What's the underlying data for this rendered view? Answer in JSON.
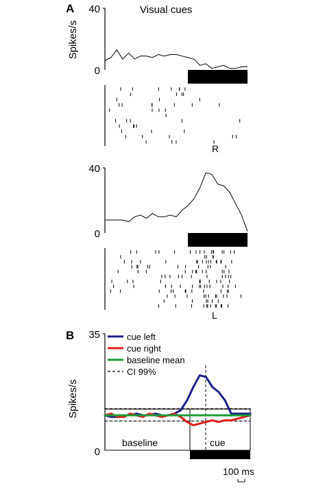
{
  "panel_a": {
    "letter": "A",
    "title": "Visual cues",
    "ylabel": "Spikes/s",
    "top": {
      "ytick_max": "40",
      "ytick_min": "0",
      "raster_label": "R",
      "rate": [
        6,
        8,
        13,
        7,
        11,
        7,
        9,
        9,
        8,
        10,
        9,
        10,
        10,
        9,
        8,
        7,
        3,
        4,
        1,
        2,
        3,
        1,
        1,
        2,
        2
      ],
      "raster_rows": 11,
      "seed": 7
    },
    "bottom": {
      "ytick_max": "40",
      "ytick_min": "0",
      "raster_label": "L",
      "rate": [
        8,
        8,
        8,
        8,
        7,
        10,
        11,
        9,
        12,
        10,
        10,
        11,
        10,
        14,
        17,
        21,
        28,
        37,
        36,
        30,
        29,
        25,
        18,
        11,
        1
      ],
      "raster_rows": 12,
      "seed": 13
    }
  },
  "panel_b": {
    "letter": "B",
    "ylabel": "Spikes/s",
    "ytick_max": "35",
    "ytick_min": "0",
    "label_baseline": "baseline",
    "label_cue": "cue",
    "scale_bar": "100 ms",
    "legend": [
      {
        "label": "cue left",
        "color": "#1c1f8a"
      },
      {
        "label": "cue right",
        "color": "#e31b1b"
      },
      {
        "label": "baseline mean",
        "color": "#1f9a3a"
      },
      {
        "label": "CI 99%",
        "color": "#000000"
      }
    ]
  },
  "chart_data": [
    {
      "type": "line",
      "series": [
        {
          "values": [
            6,
            8,
            13,
            7,
            11,
            7,
            9,
            9,
            8,
            10,
            9,
            10,
            10,
            9,
            8,
            7,
            3,
            4,
            1,
            2,
            3,
            1,
            1,
            2,
            2
          ]
        }
      ],
      "ylabel": "Spikes/s",
      "ylim": [
        0,
        40
      ],
      "title": "Visual cues"
    },
    {
      "type": "line",
      "series": [
        {
          "values": [
            8,
            8,
            8,
            8,
            7,
            10,
            11,
            9,
            12,
            10,
            10,
            11,
            10,
            14,
            17,
            21,
            28,
            37,
            36,
            30,
            29,
            25,
            18,
            11,
            1
          ]
        }
      ],
      "ylabel": "Spikes/s",
      "ylim": [
        0,
        40
      ]
    },
    {
      "type": "line",
      "x": [
        0,
        20,
        40,
        60,
        80,
        100,
        120,
        140,
        160,
        180,
        200,
        220,
        240,
        260,
        280,
        300,
        320,
        340,
        360,
        380,
        400,
        420,
        440,
        460
      ],
      "series": [
        {
          "name": "cue left",
          "values": [
            10.5,
            10,
            10,
            10.5,
            10.5,
            11,
            10.5,
            10.5,
            11,
            10.5,
            10.5,
            11,
            12,
            15,
            19,
            22.5,
            22,
            19,
            17.5,
            15,
            11,
            11,
            11,
            11
          ]
        },
        {
          "name": "cue right",
          "values": [
            10.5,
            11,
            10,
            10,
            11,
            10.5,
            10,
            11,
            10.5,
            10,
            10.5,
            11,
            10,
            8.5,
            7.5,
            8,
            8.5,
            9,
            8.5,
            9,
            9,
            9.5,
            10,
            10.5
          ]
        },
        {
          "name": "baseline mean",
          "values": [
            10.5,
            10.5,
            10.5,
            10.5,
            10.5,
            10.5,
            10.5,
            10.5,
            10.5,
            10.5,
            10.5,
            10.5,
            10.5,
            10.5,
            10.5,
            10.5,
            10.5,
            10.5,
            10.5,
            10.5,
            10.5,
            10.5,
            10.5,
            10.5
          ]
        },
        {
          "name": "CI 99%",
          "values": [
            12.5,
            12.5,
            12.5,
            12.5,
            12.5,
            12.5,
            12.5,
            12.5,
            12.5,
            12.5,
            12.5,
            12.5,
            12.5,
            12.5,
            12.5,
            12.5,
            12.5,
            12.5,
            12.5,
            12.5,
            12.5,
            12.5,
            12.5,
            12.5
          ]
        },
        {
          "name": "CI 99%",
          "values": [
            8.8,
            8.8,
            8.8,
            8.8,
            8.8,
            8.8,
            8.8,
            8.8,
            8.8,
            8.8,
            8.8,
            8.8,
            8.8,
            8.8,
            8.8,
            8.8,
            8.8,
            8.8,
            8.8,
            8.8,
            8.8,
            8.8,
            8.8,
            8.8
          ]
        }
      ],
      "ylabel": "Spikes/s",
      "ylim": [
        0,
        35
      ],
      "legend": "top-left"
    }
  ]
}
